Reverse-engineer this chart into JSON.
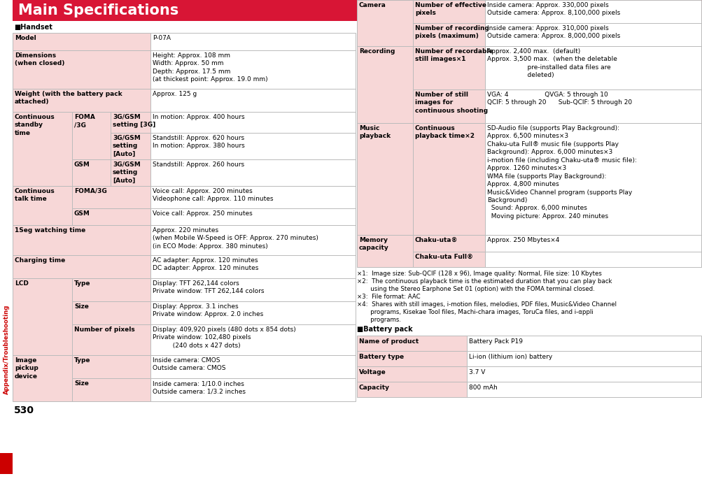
{
  "title": "Main Specifications",
  "title_bg": "#d81535",
  "title_color": "#ffffff",
  "section_handset": "■Handset",
  "section_battery": "■Battery pack",
  "sidebar_text": "Appendix/Troubleshooting",
  "sidebar_color": "#cc0000",
  "header_bg": "#f7d7d7",
  "white_bg": "#ffffff",
  "border_color": "#bbbbbb",
  "page_number": "530",
  "footnotes": [
    "×1:  Image size: Sub-QCIF (128 x 96), Image quality: Normal, File size: 10 Kbytes",
    "×2:  The continuous playback time is the estimated duration that you can play back",
    "       using the Stereo Earphone Set 01 (option) with the FOMA terminal closed.",
    "×3:  File format: AAC",
    "×4:  Shares with still images, i-motion files, melodies, PDF files, Music&Video Channel",
    "       programs, Kisekae Tool files, Machi-chara images, ToruCa files, and i-αppli",
    "       programs."
  ],
  "battery_table": [
    {
      "label": "Name of product",
      "value": "Battery Pack P19"
    },
    {
      "label": "Battery type",
      "value": "Li-ion (lithium ion) battery"
    },
    {
      "label": "Voltage",
      "value": "3.7 V"
    },
    {
      "label": "Capacity",
      "value": "800 mAh"
    }
  ]
}
